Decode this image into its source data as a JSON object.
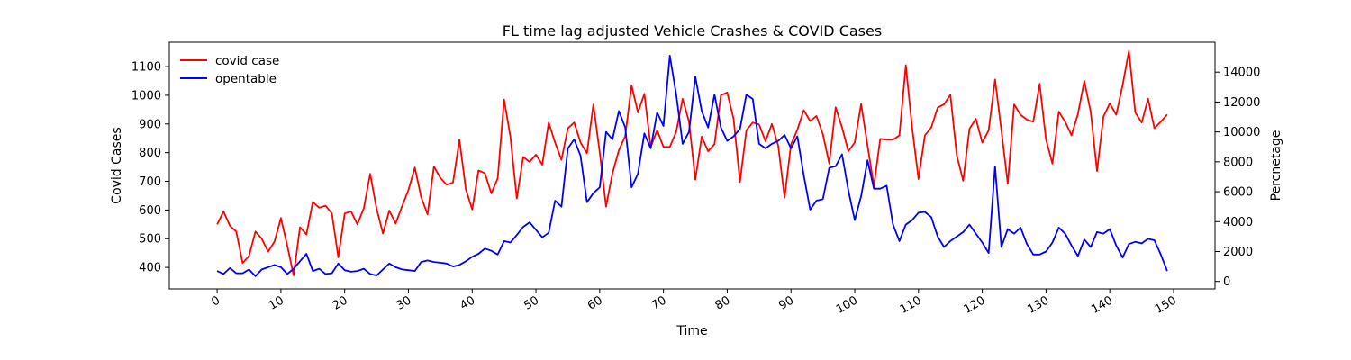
{
  "chart_data": {
    "type": "line",
    "title": "FL time lag adjusted Vehicle Crashes & COVID Cases",
    "xlabel": "Time",
    "ylabel_left": "Covid Cases",
    "ylabel_right": "Percnetage",
    "xlim": [
      -7.5,
      156.5
    ],
    "ylim_left": [
      325,
      1185
    ],
    "ylim_right": [
      -500,
      16000
    ],
    "xticks": [
      0,
      10,
      20,
      30,
      40,
      50,
      60,
      70,
      80,
      90,
      100,
      110,
      120,
      130,
      140,
      150
    ],
    "yticks_left": [
      400,
      500,
      600,
      700,
      800,
      900,
      1000,
      1100
    ],
    "yticks_right": [
      0,
      2000,
      4000,
      6000,
      8000,
      10000,
      12000,
      14000
    ],
    "legend_position": "upper-left",
    "grid": false,
    "series": [
      {
        "name": "covid case",
        "axis": "left",
        "color": "#ff0000",
        "values": [
          550,
          595,
          545,
          525,
          415,
          440,
          525,
          500,
          455,
          490,
          572,
          475,
          372,
          540,
          515,
          628,
          608,
          615,
          588,
          435,
          588,
          595,
          550,
          606,
          726,
          605,
          518,
          598,
          553,
          613,
          670,
          748,
          645,
          585,
          752,
          712,
          688,
          696,
          845,
          672,
          602,
          738,
          728,
          658,
          710,
          985,
          855,
          640,
          785,
          768,
          793,
          758,
          905,
          835,
          775,
          885,
          905,
          835,
          798,
          968,
          800,
          612,
          728,
          808,
          858,
          1035,
          940,
          1005,
          820,
          878,
          820,
          820,
          873,
          988,
          908,
          706,
          856,
          805,
          830,
          1000,
          1010,
          918,
          698,
          878,
          905,
          898,
          840,
          900,
          823,
          643,
          828,
          880,
          948,
          910,
          928,
          865,
          762,
          958,
          888,
          805,
          835,
          970,
          825,
          683,
          848,
          845,
          845,
          860,
          1105,
          888,
          708,
          860,
          888,
          957,
          968,
          1002,
          790,
          702,
          883,
          918,
          835,
          878,
          1055,
          878,
          692,
          968,
          932,
          915,
          908,
          1040,
          845,
          762,
          943,
          908,
          860,
          935,
          1050,
          942,
          736,
          925,
          972,
          932,
          1035,
          1155,
          940,
          905,
          988,
          885,
          908,
          933
        ]
      },
      {
        "name": "opentable",
        "axis": "right",
        "color": "#0000ff",
        "values": [
          700,
          500,
          900,
          550,
          550,
          800,
          350,
          800,
          950,
          1100,
          950,
          500,
          850,
          1350,
          1850,
          700,
          850,
          500,
          550,
          1200,
          750,
          650,
          700,
          850,
          500,
          400,
          800,
          1200,
          950,
          800,
          750,
          700,
          1300,
          1400,
          1300,
          1250,
          1200,
          1000,
          1100,
          1350,
          1650,
          1850,
          2200,
          2050,
          1800,
          2700,
          2600,
          3100,
          3650,
          3950,
          3450,
          2950,
          3250,
          5400,
          5000,
          8900,
          9500,
          8400,
          5300,
          5900,
          6300,
          10000,
          9500,
          11400,
          10300,
          6300,
          7200,
          9900,
          8900,
          11300,
          10400,
          15100,
          12500,
          9200,
          10000,
          13700,
          11400,
          10300,
          12500,
          10300,
          9400,
          9700,
          10200,
          12500,
          12200,
          9200,
          8900,
          9200,
          9400,
          9800,
          8900,
          9700,
          7100,
          4800,
          5400,
          5500,
          7600,
          7700,
          8500,
          6100,
          4100,
          5700,
          8100,
          6200,
          6200,
          6400,
          3800,
          2700,
          3800,
          4100,
          4600,
          4650,
          4300,
          3000,
          2300,
          2700,
          3000,
          3300,
          3800,
          3200,
          2600,
          1900,
          7700,
          2300,
          3500,
          3200,
          3600,
          2500,
          1800,
          1800,
          2000,
          2600,
          3600,
          3200,
          2400,
          1700,
          2800,
          2300,
          3300,
          3200,
          3500,
          2400,
          1600,
          2500,
          2650,
          2550,
          2850,
          2750,
          1800,
          700
        ]
      }
    ]
  }
}
